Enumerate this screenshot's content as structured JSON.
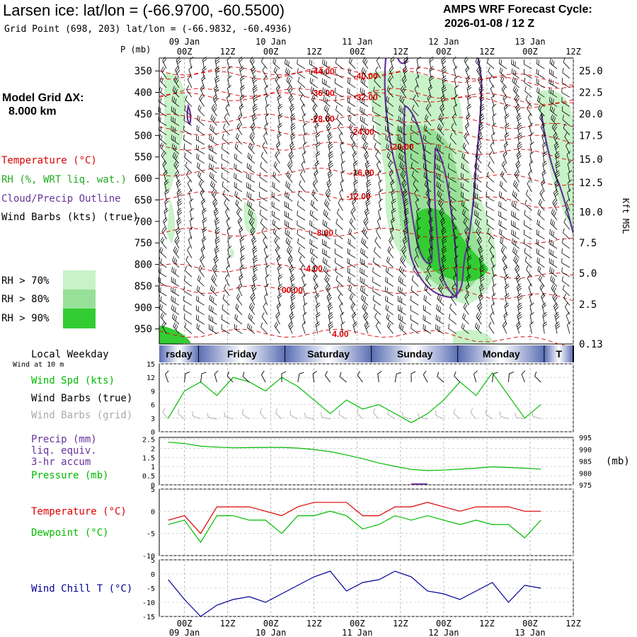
{
  "header": {
    "title": "Larsen ice:  lat/lon = (-66.9700, -60.5500)",
    "grid_point": "Grid Point (698, 203) lat/lon = (-66.9832, -60.4936)",
    "forecast_label": "AMPS WRF Forecast Cycle:",
    "forecast_cycle": "2026-01-08 / 12  Z",
    "model_grid": "Model Grid ΔX:",
    "model_dx": "8.000 km"
  },
  "legend": {
    "temperature": "Temperature (°C)",
    "rh": "RH (%, WRT liq. wat.)",
    "cloud": "Cloud/Precip Outline",
    "wind": "Wind Barbs (kts) (true)",
    "rh_levels": [
      "RH > 70%",
      "RH > 80%",
      "RH > 90%"
    ]
  },
  "colors": {
    "temp": "#dd0000",
    "rh_legend": "#22aa22",
    "cloud": "#663399",
    "rh70": "#c8f2c8",
    "rh80": "#98e098",
    "rh90": "#33cc33",
    "series_green": "#00bb00",
    "series_red": "#dd0000",
    "series_blue": "#000099",
    "grid_barb": "#aaaaaa",
    "band": "#5a6eb4"
  },
  "time_axis": {
    "hours": [
      0,
      12,
      24,
      36,
      48,
      60,
      72,
      84,
      96,
      108
    ],
    "labels": [
      "00Z",
      "12Z",
      "00Z",
      "12Z",
      "00Z",
      "12Z",
      "00Z",
      "12Z",
      "00Z",
      "12Z"
    ],
    "dates": [
      "09 Jan",
      "10 Jan",
      "11 Jan",
      "12 Jan",
      "13 Jan"
    ],
    "date_hours": [
      0,
      24,
      48,
      72,
      96
    ],
    "range": [
      -7,
      108
    ]
  },
  "chart_data": [
    {
      "type": "contour",
      "title": "Vertical cross-section",
      "ylabel": "P (mb)",
      "yticks": [
        350,
        400,
        450,
        500,
        550,
        600,
        650,
        700,
        750,
        800,
        850,
        900,
        950
      ],
      "ylim": [
        320,
        985
      ],
      "right_axis_label": "Kft MSL",
      "right_ticks": [
        {
          "p": 350,
          "label": "25.0"
        },
        {
          "p": 400,
          "label": "22.5"
        },
        {
          "p": 450,
          "label": "20.0"
        },
        {
          "p": 500,
          "label": "17.5"
        },
        {
          "p": 555,
          "label": "15.0"
        },
        {
          "p": 610,
          "label": "12.5"
        },
        {
          "p": 678,
          "label": "10.0"
        },
        {
          "p": 750,
          "label": "7.5"
        },
        {
          "p": 820,
          "label": "5.0"
        },
        {
          "p": 893,
          "label": "2.5"
        },
        {
          "p": 985,
          "label": "0.13"
        }
      ],
      "temp_labels": [
        {
          "t": 35,
          "p": 350,
          "label": "-44.00"
        },
        {
          "t": 47,
          "p": 360,
          "label": "-40.00"
        },
        {
          "t": 35,
          "p": 400,
          "label": "-36.00"
        },
        {
          "t": 47,
          "p": 410,
          "label": "-32.00"
        },
        {
          "t": 35,
          "p": 460,
          "label": "-28.00"
        },
        {
          "t": 46,
          "p": 490,
          "label": "-24.00"
        },
        {
          "t": 57,
          "p": 525,
          "label": "-20.00"
        },
        {
          "t": 46,
          "p": 585,
          "label": "-16.00"
        },
        {
          "t": 45,
          "p": 640,
          "label": "-12.00"
        },
        {
          "t": 36,
          "p": 725,
          "label": "-8.00"
        },
        {
          "t": 33,
          "p": 808,
          "label": "-4.00"
        },
        {
          "t": 27,
          "p": 858,
          "label": "00.00"
        },
        {
          "t": 41,
          "p": 960,
          "label": "4.00"
        }
      ]
    },
    {
      "type": "line",
      "title": "Wind at 10 m",
      "ylabel": "Wind Spd (kts)",
      "yticks": [
        0,
        3,
        6,
        9,
        12,
        15
      ],
      "ylim": [
        0,
        15
      ],
      "series": [
        {
          "name": "Wind Spd (kts)",
          "values": [
            3,
            9,
            11,
            8,
            12,
            11,
            9,
            12,
            10,
            7,
            4,
            7,
            5,
            6,
            4,
            2,
            4,
            7,
            11,
            8,
            13,
            8,
            3,
            6
          ]
        }
      ]
    },
    {
      "type": "line",
      "title": "Precip / Pressure",
      "ylabel": "Pressure (mb)",
      "yticks_left": [
        0.0,
        0.5,
        1.0,
        1.5,
        2.0,
        2.5
      ],
      "yticks_right": [
        975,
        980,
        985,
        990,
        995
      ],
      "ylim_left": [
        0,
        2.6
      ],
      "ylim_right": [
        975,
        995
      ],
      "series": [
        {
          "name": "Pressure (mb)",
          "values": [
            993.0,
            992.4,
            991.3,
            990.9,
            990.6,
            990.7,
            990.8,
            990.8,
            990.5,
            989.9,
            989.0,
            987.6,
            986.0,
            984.2,
            982.8,
            981.5,
            981.0,
            981.2,
            981.6,
            982.0,
            982.6,
            982.3,
            982.0,
            981.6
          ]
        },
        {
          "name": "Precip (mm) liq. equiv. 3-hr accum",
          "values": [
            0,
            0,
            0,
            0,
            0,
            0,
            0,
            0,
            0,
            0,
            0,
            0,
            0,
            0,
            0,
            0.08,
            0,
            0,
            0,
            0,
            0,
            0,
            0,
            0
          ]
        }
      ]
    },
    {
      "type": "line",
      "title": "Temperature / Dewpoint",
      "yticks": [
        -10,
        -5,
        0,
        5
      ],
      "ylim": [
        -10,
        5
      ],
      "series": [
        {
          "name": "Temperature (°C)",
          "values": [
            -2,
            -1,
            -5,
            1,
            1,
            1,
            0,
            -1,
            1,
            2,
            2,
            2,
            -1,
            -1,
            1,
            1,
            2,
            1,
            0,
            1,
            1,
            1,
            0,
            0
          ]
        },
        {
          "name": "Dewpoint (°C)",
          "values": [
            -3,
            -2,
            -7,
            -1,
            -1,
            -2,
            -2,
            -5,
            -1,
            -1,
            0,
            -1,
            -4,
            -3,
            -1,
            -2,
            -1,
            -2,
            -3,
            -2,
            -3,
            -3,
            -6,
            -2
          ]
        }
      ]
    },
    {
      "type": "line",
      "title": "Wind Chill",
      "yticks": [
        -15,
        -10,
        -5,
        0,
        5
      ],
      "ylim": [
        -15,
        5
      ],
      "series": [
        {
          "name": "Wind Chill T (°C)",
          "values": [
            -2,
            -9,
            -15,
            -11,
            -9,
            -8,
            -10,
            -7,
            -4,
            -1,
            1,
            -6,
            -3,
            -2,
            1,
            -1,
            -6,
            -7,
            -9,
            -6,
            -3,
            -10,
            -4,
            -5
          ]
        }
      ]
    }
  ],
  "left_labels": {
    "weekday": "Local Weekday",
    "wind10": "Wind at 10 m",
    "wind_spd": "Wind Spd (kts)",
    "wind_barbs_true": "Wind Barbs (true)",
    "wind_barbs_grid": "Wind Barbs (grid)",
    "precip": "Precip (mm)",
    "liq": "liq. equiv.",
    "accum": "3-hr accum",
    "pressure": "Pressure (mb)",
    "mb": "(mb)",
    "temperature": "Temperature (°C)",
    "dewpoint": "Dewpoint (°C)",
    "windchill": "Wind Chill T (°C)"
  },
  "weekdays": [
    "rsday",
    "Friday",
    "Saturday",
    "Sunday",
    "Monday",
    "T"
  ]
}
